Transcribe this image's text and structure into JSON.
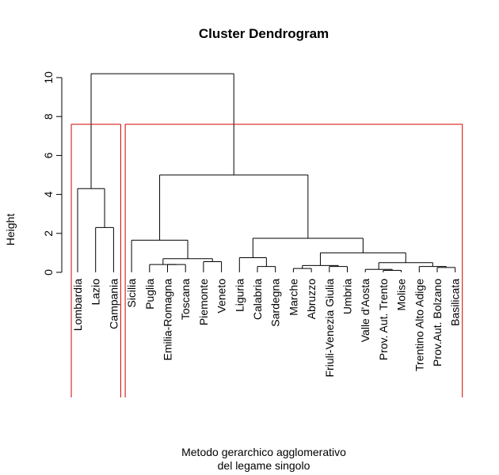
{
  "chart_data": {
    "type": "dendrogram",
    "title": "Cluster Dendrogram",
    "ylabel": "Height",
    "xlabel_lines": [
      "Metodo gerarchico agglomerativo",
      "del legame singolo"
    ],
    "ylim": [
      0,
      10.5
    ],
    "yticks": [
      0,
      2,
      4,
      6,
      8,
      10
    ],
    "leaves": [
      "Lombardia",
      "Lazio",
      "Campania",
      "Sicilia",
      "Puglia",
      "Emilia-Romagna",
      "Toscana",
      "Piemonte",
      "Veneto",
      "Liguria",
      "Calabria",
      "Sardegna",
      "Marche",
      "Abruzzo",
      "Friuli-Venezia Giulia",
      "Umbria",
      "Valle d'Aosta",
      "Prov. Aut. Trento",
      "Molise",
      "Trentino Alto Adige",
      "Prov.Aut. Bolzano",
      "Basilicata"
    ],
    "merges": [
      {
        "left": "L:Prov. Aut. Trento",
        "right": "L:Molise",
        "height": 0.1
      },
      {
        "left": "L:Valle d'Aosta",
        "right": "M1",
        "height": 0.15
      },
      {
        "left": "L:Marche",
        "right": "L:Abruzzo",
        "height": 0.2
      },
      {
        "left": "L:Prov.Aut. Bolzano",
        "right": "L:Basilicata",
        "height": 0.25
      },
      {
        "left": "L:Friuli-Venezia Giulia",
        "right": "L:Umbria",
        "height": 0.3
      },
      {
        "left": "L:Calabria",
        "right": "L:Sardegna",
        "height": 0.3
      },
      {
        "left": "L:Trentino Alto Adige",
        "right": "M4",
        "height": 0.3
      },
      {
        "left": "M3",
        "right": "M5",
        "height": 0.35
      },
      {
        "left": "L:Emilia-Romagna",
        "right": "L:Toscana",
        "height": 0.4
      },
      {
        "left": "L:Puglia",
        "right": "M9",
        "height": 0.4
      },
      {
        "left": "M2",
        "right": "M7",
        "height": 0.5
      },
      {
        "left": "L:Piemonte",
        "right": "L:Veneto",
        "height": 0.55
      },
      {
        "left": "M10",
        "right": "M12",
        "height": 0.7
      },
      {
        "left": "L:Liguria",
        "right": "M6",
        "height": 0.75
      },
      {
        "left": "M8",
        "right": "M11",
        "height": 1.0
      },
      {
        "left": "M14",
        "right": "M15",
        "height": 1.75
      },
      {
        "left": "L:Sicilia",
        "right": "M13",
        "height": 1.65
      },
      {
        "left": "L:Lazio",
        "right": "L:Campania",
        "height": 2.3
      },
      {
        "left": "L:Lombardia",
        "right": "M18",
        "height": 4.3
      },
      {
        "left": "M17",
        "right": "M16",
        "height": 5.0
      },
      {
        "left": "M19",
        "right": "M20",
        "height": 10.2
      }
    ],
    "clusters": [
      {
        "first_leaf": 0,
        "last_leaf": 2
      },
      {
        "first_leaf": 3,
        "last_leaf": 21
      }
    ],
    "cluster_box_color": "#d00000"
  }
}
